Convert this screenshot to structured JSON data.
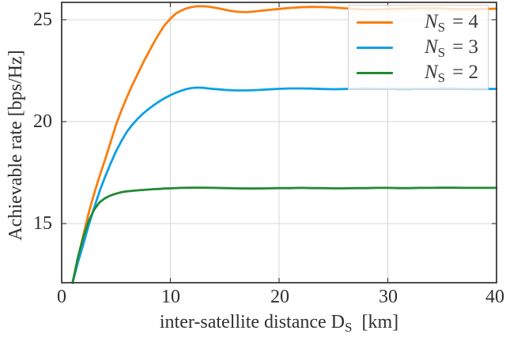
{
  "figure": {
    "ylabel": "Achievable rate [bps/Hz]",
    "xlabel_prefix": "inter-satellite distance D",
    "xlabel_sub": "S",
    "xlabel_suffix": " [km]"
  },
  "chart_data": {
    "type": "line",
    "title": "",
    "xlabel": "inter-satellite distance D_S [km]",
    "ylabel": "Achievable rate [bps/Hz]",
    "xlim": [
      0,
      40
    ],
    "ylim": [
      12.1,
      25.85
    ],
    "xticks": [
      0,
      10,
      20,
      30,
      40
    ],
    "yticks": [
      15,
      20,
      25
    ],
    "x_tick_labels": [
      "0",
      "10",
      "20",
      "30",
      "40"
    ],
    "y_tick_labels": [
      "15",
      "20",
      "25"
    ],
    "grid": true,
    "grid_color": "#d6d6d6",
    "axis_color": "#3a3a3a",
    "legend_position": "top-right",
    "series": [
      {
        "name": "N_S = 4",
        "label_var": "N",
        "label_sub": "S",
        "label_eq": "= 4",
        "color": "#fb7d0d",
        "points": [
          [
            1,
            12.1
          ],
          [
            1.5,
            13.3
          ],
          [
            2,
            14.45
          ],
          [
            2.5,
            15.55
          ],
          [
            3,
            16.5
          ],
          [
            3.5,
            17.35
          ],
          [
            4,
            18.15
          ],
          [
            4.5,
            19.0
          ],
          [
            5,
            19.85
          ],
          [
            5.5,
            20.55
          ],
          [
            6,
            21.2
          ],
          [
            6.5,
            21.8
          ],
          [
            7,
            22.35
          ],
          [
            7.5,
            22.9
          ],
          [
            8,
            23.4
          ],
          [
            8.5,
            23.9
          ],
          [
            9,
            24.35
          ],
          [
            9.5,
            24.75
          ],
          [
            10,
            25.05
          ],
          [
            10.5,
            25.3
          ],
          [
            11,
            25.45
          ],
          [
            11.5,
            25.56
          ],
          [
            12,
            25.62
          ],
          [
            12.5,
            25.66
          ],
          [
            13,
            25.66
          ],
          [
            13.5,
            25.64
          ],
          [
            14,
            25.6
          ],
          [
            14.5,
            25.55
          ],
          [
            15,
            25.49
          ],
          [
            15.5,
            25.44
          ],
          [
            16,
            25.4
          ],
          [
            16.5,
            25.38
          ],
          [
            17,
            25.37
          ],
          [
            17.5,
            25.39
          ],
          [
            18,
            25.42
          ],
          [
            18.5,
            25.45
          ],
          [
            19,
            25.48
          ],
          [
            20,
            25.53
          ],
          [
            21,
            25.58
          ],
          [
            22,
            25.61
          ],
          [
            23,
            25.63
          ],
          [
            24,
            25.62
          ],
          [
            25,
            25.6
          ],
          [
            26,
            25.56
          ],
          [
            27,
            25.52
          ],
          [
            28,
            25.5
          ],
          [
            29,
            25.5
          ],
          [
            30,
            25.52
          ],
          [
            31,
            25.54
          ],
          [
            32,
            25.55
          ],
          [
            33,
            25.56
          ],
          [
            34,
            25.56
          ],
          [
            35,
            25.55
          ],
          [
            36,
            25.53
          ],
          [
            37,
            25.52
          ],
          [
            38,
            25.52
          ],
          [
            39,
            25.53
          ],
          [
            40,
            25.54
          ]
        ]
      },
      {
        "name": "N_S = 3",
        "label_var": "N",
        "label_sub": "S",
        "label_eq": "= 3",
        "color": "#0ca0e6",
        "points": [
          [
            1,
            12.1
          ],
          [
            1.5,
            13.1
          ],
          [
            2,
            14.0
          ],
          [
            2.5,
            14.95
          ],
          [
            3,
            15.8
          ],
          [
            3.5,
            16.6
          ],
          [
            4,
            17.3
          ],
          [
            4.5,
            17.95
          ],
          [
            5,
            18.55
          ],
          [
            5.5,
            19.05
          ],
          [
            6,
            19.5
          ],
          [
            6.5,
            19.85
          ],
          [
            7,
            20.15
          ],
          [
            7.5,
            20.4
          ],
          [
            8,
            20.62
          ],
          [
            8.5,
            20.82
          ],
          [
            9,
            21.0
          ],
          [
            9.5,
            21.16
          ],
          [
            10,
            21.3
          ],
          [
            10.5,
            21.42
          ],
          [
            11,
            21.52
          ],
          [
            11.5,
            21.6
          ],
          [
            12,
            21.65
          ],
          [
            12.5,
            21.67
          ],
          [
            13,
            21.66
          ],
          [
            13.5,
            21.63
          ],
          [
            14,
            21.6
          ],
          [
            14.5,
            21.58
          ],
          [
            15,
            21.56
          ],
          [
            16,
            21.53
          ],
          [
            17,
            21.53
          ],
          [
            18,
            21.55
          ],
          [
            19,
            21.58
          ],
          [
            20,
            21.61
          ],
          [
            21,
            21.63
          ],
          [
            22,
            21.63
          ],
          [
            23,
            21.62
          ],
          [
            24,
            21.6
          ],
          [
            25,
            21.59
          ],
          [
            26,
            21.6
          ],
          [
            27,
            21.61
          ],
          [
            28,
            21.62
          ],
          [
            29,
            21.61
          ],
          [
            30,
            21.61
          ],
          [
            31,
            21.6
          ],
          [
            32,
            21.6
          ],
          [
            33,
            21.61
          ],
          [
            34,
            21.61
          ],
          [
            35,
            21.62
          ],
          [
            36,
            21.62
          ],
          [
            37,
            21.61
          ],
          [
            38,
            21.6
          ],
          [
            39,
            21.6
          ],
          [
            40,
            21.61
          ]
        ]
      },
      {
        "name": "N_S = 2",
        "label_var": "N",
        "label_sub": "S",
        "label_eq": "= 2",
        "color": "#218a35",
        "points": [
          [
            1,
            12.1
          ],
          [
            1.5,
            13.35
          ],
          [
            2,
            14.35
          ],
          [
            2.5,
            15.15
          ],
          [
            3,
            15.7
          ],
          [
            3.5,
            16.05
          ],
          [
            4,
            16.25
          ],
          [
            4.5,
            16.38
          ],
          [
            5,
            16.47
          ],
          [
            5.5,
            16.54
          ],
          [
            6,
            16.58
          ],
          [
            6.5,
            16.61
          ],
          [
            7,
            16.63
          ],
          [
            7.5,
            16.65
          ],
          [
            8,
            16.67
          ],
          [
            8.5,
            16.69
          ],
          [
            9,
            16.7
          ],
          [
            9.5,
            16.72
          ],
          [
            10,
            16.73
          ],
          [
            11,
            16.75
          ],
          [
            12,
            16.76
          ],
          [
            13,
            16.76
          ],
          [
            14,
            16.75
          ],
          [
            15,
            16.74
          ],
          [
            16,
            16.73
          ],
          [
            17,
            16.72
          ],
          [
            18,
            16.72
          ],
          [
            19,
            16.73
          ],
          [
            20,
            16.74
          ],
          [
            21,
            16.74
          ],
          [
            22,
            16.75
          ],
          [
            23,
            16.74
          ],
          [
            24,
            16.74
          ],
          [
            25,
            16.73
          ],
          [
            26,
            16.73
          ],
          [
            27,
            16.74
          ],
          [
            28,
            16.74
          ],
          [
            29,
            16.75
          ],
          [
            30,
            16.75
          ],
          [
            31,
            16.74
          ],
          [
            32,
            16.74
          ],
          [
            33,
            16.75
          ],
          [
            34,
            16.75
          ],
          [
            35,
            16.76
          ],
          [
            36,
            16.76
          ],
          [
            37,
            16.75
          ],
          [
            38,
            16.75
          ],
          [
            39,
            16.75
          ],
          [
            40,
            16.75
          ]
        ]
      }
    ]
  }
}
